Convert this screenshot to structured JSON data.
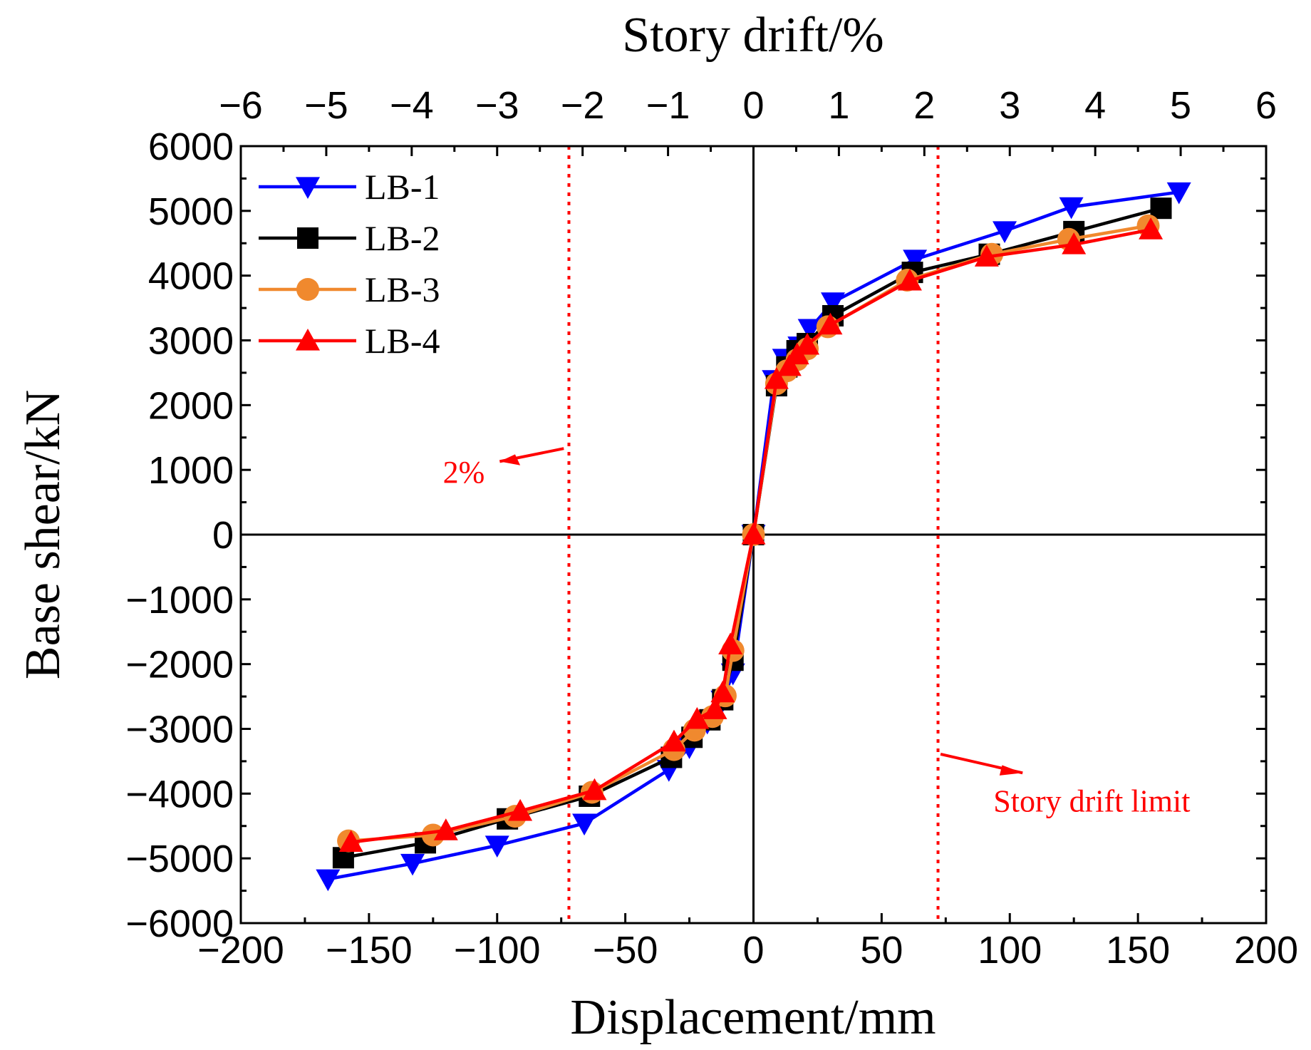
{
  "chart_data": {
    "type": "line",
    "xlabel": "Displacement/mm",
    "ylabel": "Base shear/kN",
    "x2label": "Story drift/%",
    "xlim": [
      -200,
      200
    ],
    "ylim": [
      -6000,
      6000
    ],
    "x2lim": [
      -6,
      6
    ],
    "x_ticks": [
      -200,
      -150,
      -100,
      -50,
      0,
      50,
      100,
      150,
      200
    ],
    "y_ticks": [
      -6000,
      -5000,
      -4000,
      -3000,
      -2000,
      -1000,
      0,
      1000,
      2000,
      3000,
      4000,
      5000,
      6000
    ],
    "x2_ticks": [
      -6,
      -5,
      -4,
      -3,
      -2,
      -1,
      0,
      1,
      2,
      3,
      4,
      5,
      6
    ],
    "grid": false,
    "legend_position": "top-left",
    "reference_lines": [
      {
        "x": -72,
        "color": "#ff0000",
        "style": "dotted"
      },
      {
        "x": 72,
        "color": "#ff0000",
        "style": "dotted"
      }
    ],
    "annotations": [
      {
        "text": "2%",
        "x": -113,
        "y": 1000,
        "color": "#ff0000"
      },
      {
        "text": "Story drift limit",
        "x": 132,
        "y": -4100,
        "color": "#ff0000"
      }
    ],
    "series": [
      {
        "name": "LB-1",
        "color": "#0000ff",
        "marker": "triangle-down",
        "x": [
          -166,
          -133,
          -100,
          -66,
          -33,
          -25,
          -18,
          -12,
          -8,
          0,
          8,
          12,
          18,
          22,
          31,
          63,
          98,
          124,
          166
        ],
        "y": [
          -5320,
          -5080,
          -4800,
          -4460,
          -3630,
          -3280,
          -2900,
          -2560,
          -2140,
          0,
          2390,
          2720,
          2910,
          3180,
          3590,
          4250,
          4690,
          5060,
          5290
        ]
      },
      {
        "name": "LB-2",
        "color": "#000000",
        "marker": "square",
        "x": [
          -160,
          -128,
          -96,
          -64,
          -32,
          -24,
          -17,
          -12,
          -8,
          0,
          9,
          13,
          17,
          21,
          31,
          62,
          92,
          125,
          159
        ],
        "y": [
          -4990,
          -4760,
          -4390,
          -4040,
          -3440,
          -3130,
          -2860,
          -2550,
          -1940,
          0,
          2300,
          2590,
          2840,
          2950,
          3380,
          4050,
          4330,
          4680,
          5040
        ]
      },
      {
        "name": "LB-3",
        "color": "#f0892e",
        "marker": "circle",
        "x": [
          -158,
          -125,
          -93,
          -63,
          -31,
          -23,
          -16,
          -11,
          -8,
          0,
          9,
          13,
          17,
          21,
          29,
          60,
          93,
          123,
          154
        ],
        "y": [
          -4730,
          -4640,
          -4350,
          -3980,
          -3320,
          -3020,
          -2810,
          -2490,
          -1790,
          0,
          2330,
          2530,
          2700,
          2870,
          3210,
          3930,
          4330,
          4560,
          4770
        ]
      },
      {
        "name": "LB-4",
        "color": "#ff0000",
        "marker": "triangle-up",
        "x": [
          -157,
          -120,
          -91,
          -62,
          -31,
          -22,
          -15,
          -12,
          -9,
          0,
          9,
          14,
          17,
          21,
          30,
          61,
          91,
          125,
          155
        ],
        "y": [
          -4750,
          -4570,
          -4270,
          -3950,
          -3200,
          -2850,
          -2700,
          -2440,
          -1700,
          0,
          2400,
          2600,
          2780,
          2930,
          3240,
          3920,
          4290,
          4480,
          4710
        ]
      }
    ]
  }
}
